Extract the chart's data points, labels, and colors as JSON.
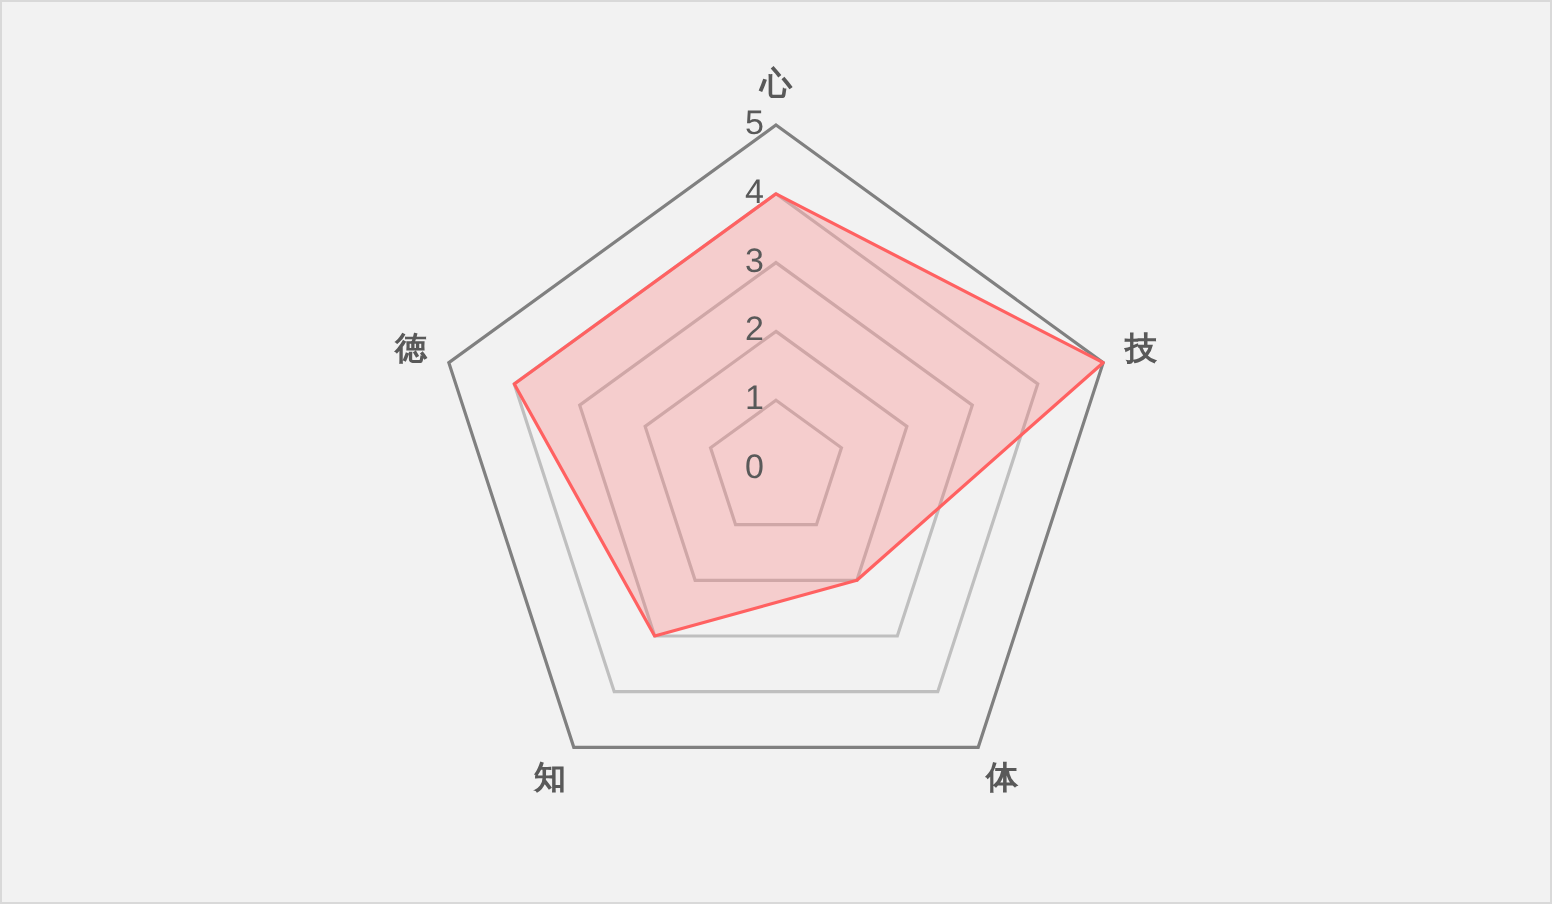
{
  "chart_data": {
    "type": "radar",
    "categories": [
      "心",
      "技",
      "体",
      "知",
      "徳"
    ],
    "series": [
      {
        "color": "#ff6161",
        "values": [
          4,
          5,
          2,
          3,
          4
        ]
      }
    ],
    "ylim": [
      0,
      5
    ],
    "yticks": [
      0,
      1,
      2,
      3,
      4,
      5
    ],
    "grid": true
  }
}
